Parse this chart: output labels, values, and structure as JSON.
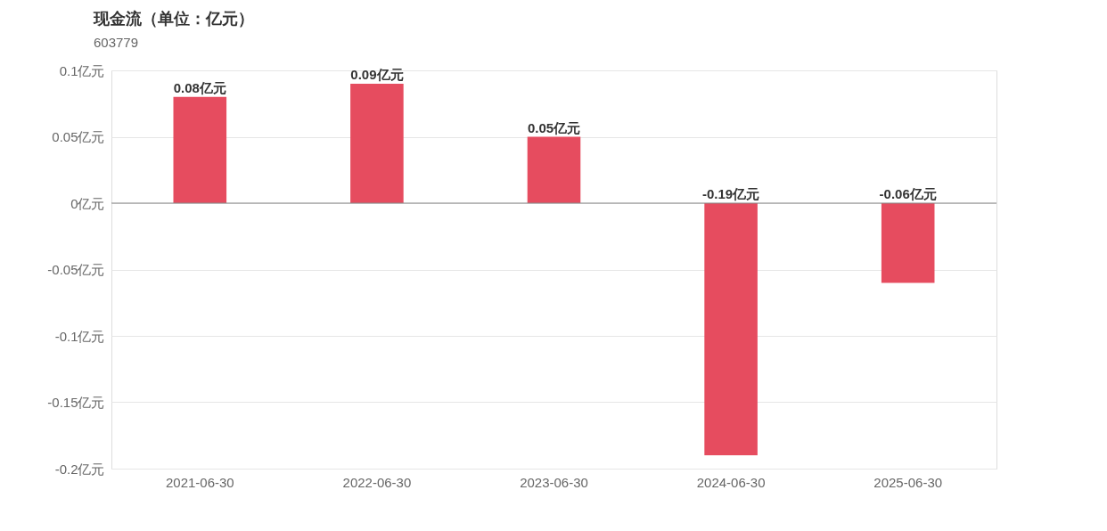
{
  "chart_data": {
    "type": "bar",
    "title": "现金流（单位：亿元）",
    "subtitle": "603779",
    "categories": [
      "2021-06-30",
      "2022-06-30",
      "2023-06-30",
      "2024-06-30",
      "2025-06-30"
    ],
    "values": [
      0.08,
      0.09,
      0.05,
      -0.19,
      -0.06
    ],
    "value_labels": [
      "0.08亿元",
      "0.09亿元",
      "0.05亿元",
      "-0.19亿元",
      "-0.06亿元"
    ],
    "color": "#e64c5f",
    "ylim": [
      -0.2,
      0.1
    ],
    "yticks": [
      {
        "value": 0.1,
        "label": "0.1亿元"
      },
      {
        "value": 0.05,
        "label": "0.05亿元"
      },
      {
        "value": 0,
        "label": "0亿元"
      },
      {
        "value": -0.05,
        "label": "-0.05亿元"
      },
      {
        "value": -0.1,
        "label": "-0.1亿元"
      },
      {
        "value": -0.15,
        "label": "-0.15亿元"
      },
      {
        "value": -0.2,
        "label": "-0.2亿元"
      }
    ],
    "ref_lines": [
      {
        "axis": "y",
        "value": 0,
        "color": "#888888"
      }
    ],
    "grid": "y"
  }
}
